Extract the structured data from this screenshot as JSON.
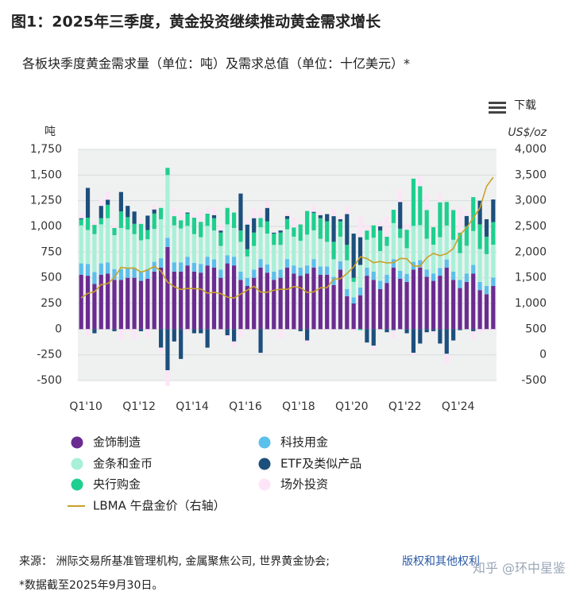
{
  "chart_data": {
    "type": "bar",
    "stacked": true,
    "title": "图1：2025年三季度，黄金投资继续推动黄金需求增长",
    "subtitle": "各板块季度黄金需求量（单位：吨）及需求总值（单位：十亿美元）*",
    "download": "下载",
    "y_label": "吨",
    "y2_label": "US$/oz",
    "categories": [
      "Q1'10",
      null,
      null,
      null,
      null,
      null,
      null,
      null,
      "Q1'12",
      null,
      null,
      null,
      null,
      null,
      null,
      null,
      "Q1'14",
      null,
      null,
      null,
      null,
      null,
      null,
      null,
      "Q1'16",
      null,
      null,
      null,
      null,
      null,
      null,
      null,
      "Q1'18",
      null,
      null,
      null,
      null,
      null,
      null,
      null,
      "Q1'20",
      null,
      null,
      null,
      null,
      null,
      null,
      null,
      "Q1'22",
      null,
      null,
      null,
      null,
      null,
      null,
      null,
      "Q1'24",
      null,
      null,
      null,
      null,
      null,
      null
    ],
    "ylim": [
      -500,
      1750
    ],
    "yticks": [
      -500,
      -250,
      0,
      250,
      500,
      750,
      {
        "value": 1000,
        "label": "1,000"
      },
      {
        "value": 1250,
        "label": "1,250"
      },
      {
        "value": 1500,
        "label": "1,500"
      },
      {
        "value": 1750,
        "label": "1,750"
      }
    ],
    "y2lim": [
      -500,
      4000
    ],
    "y2ticks": [
      -500,
      0,
      500,
      {
        "value": 1000,
        "label": "1,000"
      },
      {
        "value": 1500,
        "label": "1,500"
      },
      {
        "value": 2000,
        "label": "2,000"
      },
      {
        "value": 2500,
        "label": "2,500"
      },
      {
        "value": 3000,
        "label": "3,000"
      },
      {
        "value": 3500,
        "label": "3,500"
      },
      {
        "value": 4000,
        "label": "4,000"
      }
    ],
    "grid": true,
    "series": [
      {
        "name": "金饰制造",
        "color": "#6b2c91",
        "values": [
          530,
          520,
          440,
          530,
          540,
          480,
          480,
          500,
          500,
          470,
          490,
          560,
          600,
          800,
          560,
          560,
          620,
          560,
          550,
          620,
          600,
          500,
          640,
          620,
          480,
          420,
          500,
          600,
          550,
          480,
          500,
          600,
          540,
          520,
          540,
          600,
          530,
          530,
          430,
          580,
          320,
          250,
          330,
          520,
          480,
          390,
          450,
          600,
          490,
          460,
          580,
          600,
          510,
          470,
          520,
          600,
          480,
          400,
          460,
          540,
          380,
          340,
          420
        ]
      },
      {
        "name": "科技用金",
        "color": "#5bc0eb",
        "values": [
          110,
          115,
          115,
          110,
          110,
          105,
          105,
          100,
          95,
          95,
          95,
          95,
          90,
          90,
          90,
          90,
          85,
          85,
          85,
          85,
          80,
          80,
          80,
          85,
          80,
          78,
          80,
          82,
          80,
          80,
          80,
          82,
          80,
          80,
          80,
          82,
          80,
          80,
          80,
          80,
          70,
          60,
          75,
          80,
          80,
          80,
          80,
          82,
          78,
          78,
          75,
          72,
          70,
          72,
          75,
          78,
          80,
          80,
          82,
          85,
          80,
          80,
          82
        ]
      },
      {
        "name": "金条和金币",
        "color": "#a8f0d8",
        "values": [
          370,
          330,
          370,
          380,
          430,
          330,
          400,
          370,
          330,
          300,
          290,
          320,
          380,
          610,
          360,
          330,
          300,
          280,
          260,
          300,
          280,
          230,
          300,
          280,
          290,
          210,
          230,
          310,
          300,
          260,
          240,
          290,
          280,
          260,
          300,
          280,
          270,
          240,
          170,
          240,
          280,
          150,
          220,
          270,
          330,
          290,
          280,
          350,
          320,
          250,
          350,
          340,
          300,
          280,
          300,
          330,
          310,
          260,
          270,
          330,
          320,
          310,
          320
        ]
      },
      {
        "name": "ETF及类似产品",
        "color": "#1c4f7c",
        "values": [
          10,
          290,
          -40,
          120,
          50,
          -20,
          190,
          110,
          120,
          -20,
          140,
          40,
          -180,
          -400,
          -120,
          -290,
          10,
          -40,
          -40,
          -180,
          30,
          20,
          -60,
          -120,
          360,
          240,
          140,
          -230,
          130,
          10,
          20,
          30,
          0,
          -20,
          -110,
          10,
          30,
          70,
          250,
          20,
          300,
          430,
          270,
          -130,
          -160,
          40,
          -30,
          -10,
          260,
          -40,
          -230,
          -140,
          -30,
          -20,
          -140,
          -240,
          -110,
          -10,
          100,
          -20,
          230,
          170,
          220
        ]
      },
      {
        "name": "央行购金",
        "color": "#1fcf8f",
        "values": [
          60,
          120,
          90,
          60,
          130,
          70,
          160,
          120,
          100,
          160,
          90,
          150,
          110,
          70,
          90,
          80,
          120,
          160,
          150,
          120,
          120,
          130,
          160,
          150,
          110,
          70,
          130,
          90,
          120,
          110,
          120,
          100,
          90,
          160,
          230,
          170,
          200,
          200,
          170,
          150,
          150,
          40,
          -10,
          90,
          120,
          200,
          90,
          130,
          90,
          180,
          460,
          380,
          280,
          170,
          340,
          230,
          290,
          200,
          190,
          330,
          240,
          170,
          220
        ]
      },
      {
        "name": "场外投资",
        "color": "#fde4f7",
        "values": [
          50,
          -60,
          40,
          70,
          80,
          30,
          -100,
          -20,
          -100,
          50,
          -80,
          40,
          -50,
          -150,
          80,
          100,
          -30,
          40,
          100,
          50,
          80,
          60,
          -20,
          -50,
          -80,
          50,
          100,
          80,
          60,
          10,
          -90,
          40,
          100,
          20,
          -30,
          60,
          40,
          -20,
          70,
          30,
          80,
          -30,
          200,
          60,
          -40,
          50,
          200,
          -80,
          120,
          60,
          -20,
          100,
          150,
          -20,
          90,
          -100,
          20,
          250,
          40,
          -80,
          -40,
          -20,
          -10
        ]
      },
      {
        "name": "LBMA 午盘金价（右轴）",
        "color": "#c9a227",
        "type": "line",
        "axis": "y2",
        "values": [
          1109,
          1197,
          1227,
          1367,
          1386,
          1506,
          1702,
          1688,
          1691,
          1609,
          1652,
          1722,
          1632,
          1415,
          1326,
          1272,
          1293,
          1288,
          1282,
          1201,
          1218,
          1192,
          1124,
          1106,
          1183,
          1260,
          1335,
          1222,
          1219,
          1257,
          1278,
          1275,
          1329,
          1306,
          1213,
          1226,
          1304,
          1309,
          1472,
          1481,
          1583,
          1711,
          1909,
          1874,
          1794,
          1816,
          1789,
          1795,
          1877,
          1871,
          1729,
          1726,
          1890,
          1976,
          1929,
          1971,
          2070,
          2338,
          2474,
          2663,
          2860,
          3280,
          3457
        ]
      }
    ],
    "source": "来源： 洲际交易所基准管理机构, 金属聚焦公司, 世界黄金协会; ",
    "source_link": "版权和其他权利",
    "footnote": "*数据截至2025年9月30日。",
    "watermark": "知乎 @环中星鉴"
  }
}
